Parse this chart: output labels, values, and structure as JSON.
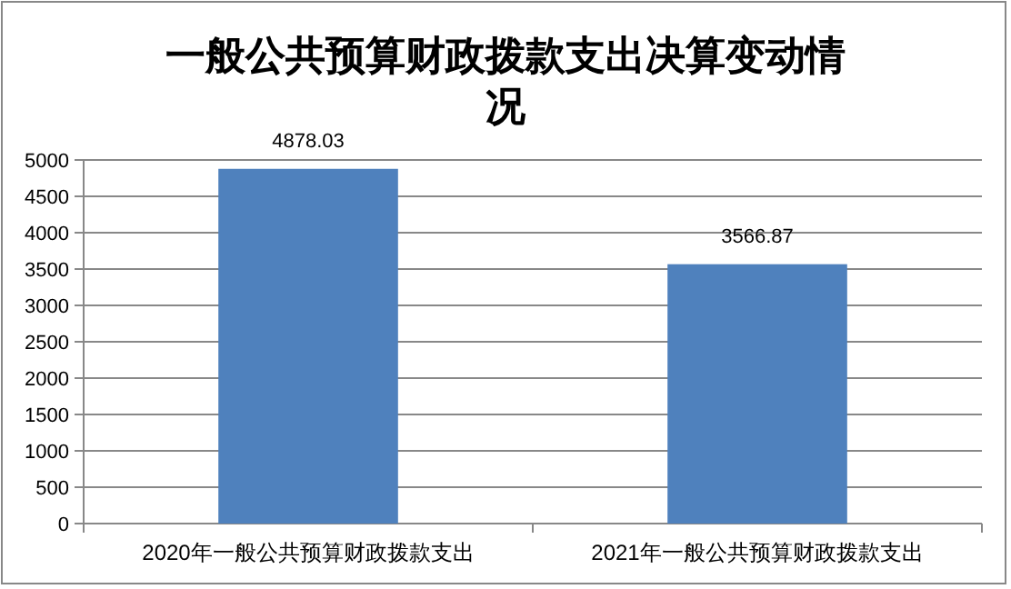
{
  "chart_data": {
    "type": "bar",
    "title": "一般公共预算财政拨款支出决算变动情况",
    "categories": [
      "2020年一般公共预算财政拨款支出",
      "2021年一般公共预算财政拨款支出"
    ],
    "values": [
      4878.03,
      3566.87
    ],
    "color": "#4f81bd",
    "ylim": [
      0,
      5000
    ],
    "yticks": [
      0,
      500,
      1000,
      1500,
      2000,
      2500,
      3000,
      3500,
      4000,
      4500,
      5000
    ],
    "grid": "y",
    "data_labels": true
  }
}
